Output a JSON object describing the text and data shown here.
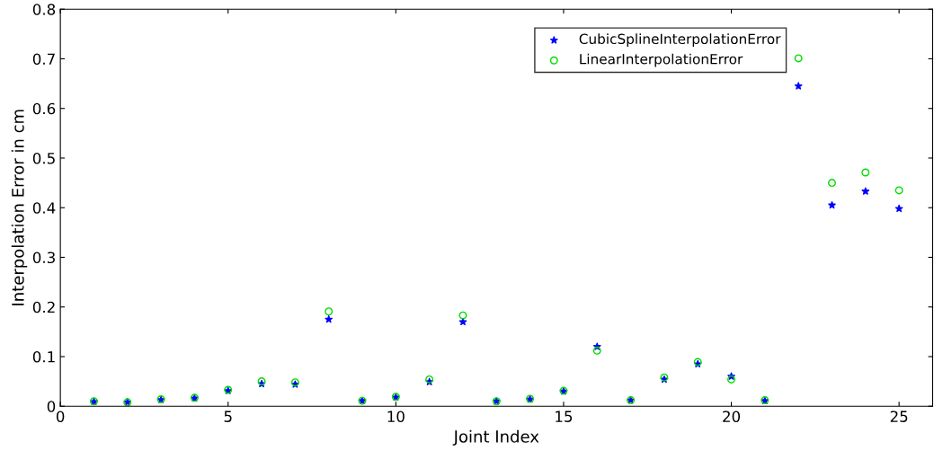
{
  "chart_data": {
    "type": "scatter",
    "xlabel": "Joint Index",
    "ylabel": "Interpolation Error in cm",
    "x": [
      1,
      2,
      3,
      4,
      5,
      6,
      7,
      8,
      9,
      10,
      11,
      12,
      13,
      14,
      15,
      16,
      17,
      18,
      19,
      20,
      21,
      22,
      23,
      24,
      25
    ],
    "series": [
      {
        "name": "CubicSplineInterpolationError",
        "color": "#0000ff",
        "marker": "star",
        "values": [
          0.009,
          0.008,
          0.013,
          0.016,
          0.031,
          0.045,
          0.044,
          0.175,
          0.011,
          0.018,
          0.049,
          0.17,
          0.01,
          0.014,
          0.03,
          0.12,
          0.012,
          0.054,
          0.085,
          0.06,
          0.011,
          0.645,
          0.405,
          0.433,
          0.398
        ]
      },
      {
        "name": "LinearInterpolationError",
        "color": "#00dd00",
        "marker": "circle",
        "values": [
          0.01,
          0.008,
          0.014,
          0.017,
          0.033,
          0.05,
          0.048,
          0.191,
          0.011,
          0.019,
          0.054,
          0.183,
          0.01,
          0.015,
          0.031,
          0.112,
          0.012,
          0.058,
          0.089,
          0.054,
          0.012,
          0.701,
          0.45,
          0.471,
          0.435
        ]
      }
    ],
    "xlim": [
      0,
      26
    ],
    "xticks": [
      0,
      5,
      10,
      15,
      20,
      25
    ],
    "ylim": [
      0,
      0.8
    ],
    "yticks": [
      0,
      0.1,
      0.2,
      0.3,
      0.4,
      0.5,
      0.6,
      0.7,
      0.8
    ],
    "grid": false,
    "legend": "top right"
  }
}
